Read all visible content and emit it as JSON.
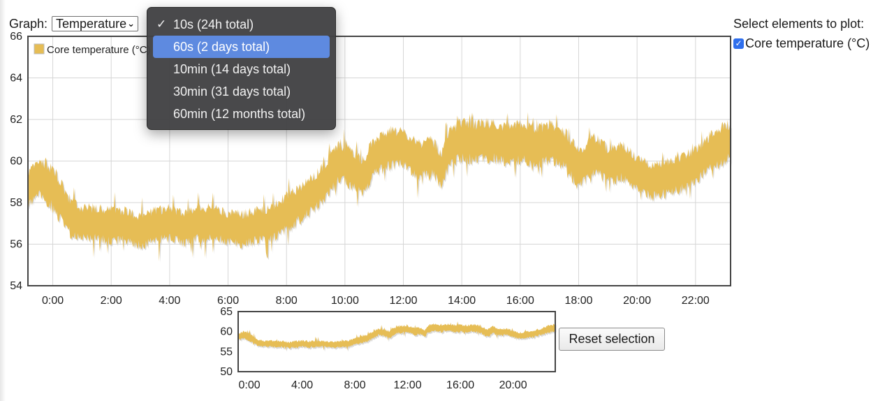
{
  "graph_selector": {
    "label": "Graph:",
    "value": "Temperature",
    "chevron_icon": "chevron-down-icon"
  },
  "dropdown": {
    "items": [
      {
        "label": "10s (24h total)",
        "checked": true,
        "highlighted": false
      },
      {
        "label": "60s (2 days total)",
        "checked": false,
        "highlighted": true
      },
      {
        "label": "10min (14 days total)",
        "checked": false,
        "highlighted": false
      },
      {
        "label": "30min (31 days total)",
        "checked": false,
        "highlighted": false
      },
      {
        "label": "60min (12 months total)",
        "checked": false,
        "highlighted": false
      }
    ],
    "check_icon": "checkmark-icon",
    "highlight_color": "#5e8ae0"
  },
  "plot_options": {
    "title": "Select elements to plot:",
    "items": [
      {
        "label": "Core temperature (°C)",
        "checked": true
      }
    ]
  },
  "reset_button": {
    "label": "Reset selection"
  },
  "colors": {
    "series": "#e6bd55",
    "series_shadow": "#b9b9b9",
    "grid": "#d6d6d6",
    "axis_border": "#444444"
  },
  "chart_data": [
    {
      "type": "line",
      "legend": "Core temperature (°C)",
      "ylim": [
        54,
        66
      ],
      "yticks": [
        "54",
        "56",
        "58",
        "60",
        "62",
        "64",
        "66"
      ],
      "xlim": [
        -0.85,
        23.2
      ],
      "xticks": [
        "0:00",
        "2:00",
        "4:00",
        "6:00",
        "8:00",
        "10:00",
        "12:00",
        "14:00",
        "16:00",
        "18:00",
        "20:00",
        "22:00"
      ],
      "grid": true,
      "series": [
        {
          "name": "Core temperature (°C)",
          "points": [
            [
              -0.85,
              58.7,
              1.4
            ],
            [
              -0.4,
              59.2,
              1.6
            ],
            [
              0.0,
              58.7,
              1.8
            ],
            [
              0.3,
              58.0,
              1.6
            ],
            [
              0.6,
              57.3,
              1.5
            ],
            [
              1.0,
              57.0,
              1.4
            ],
            [
              1.5,
              57.0,
              1.4
            ],
            [
              2.0,
              56.9,
              1.4
            ],
            [
              2.5,
              56.9,
              1.4
            ],
            [
              3.0,
              56.6,
              1.3
            ],
            [
              3.5,
              56.9,
              1.4
            ],
            [
              4.0,
              57.0,
              1.4
            ],
            [
              4.5,
              56.8,
              1.4
            ],
            [
              5.0,
              57.0,
              1.4
            ],
            [
              5.5,
              57.0,
              1.4
            ],
            [
              6.0,
              56.8,
              1.3
            ],
            [
              6.5,
              56.7,
              1.4
            ],
            [
              7.0,
              56.9,
              1.4
            ],
            [
              7.5,
              57.0,
              1.4
            ],
            [
              8.0,
              57.5,
              1.5
            ],
            [
              8.5,
              58.0,
              1.5
            ],
            [
              9.0,
              58.5,
              1.5
            ],
            [
              9.4,
              59.2,
              1.6
            ],
            [
              9.8,
              60.0,
              1.6
            ],
            [
              10.2,
              59.7,
              1.6
            ],
            [
              10.6,
              59.2,
              1.6
            ],
            [
              11.0,
              60.2,
              1.5
            ],
            [
              11.5,
              60.6,
              1.6
            ],
            [
              12.0,
              60.6,
              1.5
            ],
            [
              12.5,
              60.0,
              1.5
            ],
            [
              13.0,
              60.2,
              1.5
            ],
            [
              13.3,
              59.5,
              1.5
            ],
            [
              13.6,
              60.7,
              1.5
            ],
            [
              14.0,
              61.0,
              1.6
            ],
            [
              14.5,
              60.9,
              1.6
            ],
            [
              15.0,
              61.0,
              1.6
            ],
            [
              15.5,
              60.8,
              1.6
            ],
            [
              16.0,
              60.9,
              1.6
            ],
            [
              16.5,
              60.7,
              1.6
            ],
            [
              17.0,
              60.9,
              1.6
            ],
            [
              17.5,
              60.6,
              1.6
            ],
            [
              18.0,
              59.6,
              1.6
            ],
            [
              18.5,
              60.4,
              1.6
            ],
            [
              19.0,
              59.8,
              1.5
            ],
            [
              19.5,
              60.0,
              1.5
            ],
            [
              20.0,
              59.4,
              1.4
            ],
            [
              20.5,
              59.0,
              1.4
            ],
            [
              21.0,
              59.2,
              1.4
            ],
            [
              21.5,
              59.4,
              1.4
            ],
            [
              22.0,
              59.8,
              1.4
            ],
            [
              22.5,
              60.4,
              1.5
            ],
            [
              22.9,
              60.8,
              1.6
            ],
            [
              23.2,
              61.0,
              1.5
            ]
          ]
        }
      ]
    },
    {
      "type": "line",
      "ylim": [
        50,
        65
      ],
      "yticks": [
        "50",
        "55",
        "60",
        "65"
      ],
      "xlim": [
        -0.85,
        23.2
      ],
      "xticks": [
        "0:00",
        "4:00",
        "8:00",
        "12:00",
        "16:00",
        "20:00"
      ],
      "grid": false,
      "series": [
        {
          "name": "Core temperature (°C)",
          "points": [
            [
              -0.85,
              58.7,
              1.4
            ],
            [
              -0.4,
              59.2,
              1.6
            ],
            [
              0.0,
              58.7,
              1.8
            ],
            [
              0.3,
              58.0,
              1.6
            ],
            [
              0.6,
              57.3,
              1.5
            ],
            [
              1.0,
              57.0,
              1.4
            ],
            [
              1.5,
              57.0,
              1.4
            ],
            [
              2.0,
              56.9,
              1.4
            ],
            [
              2.5,
              56.9,
              1.4
            ],
            [
              3.0,
              56.6,
              1.3
            ],
            [
              3.5,
              56.9,
              1.4
            ],
            [
              4.0,
              57.0,
              1.4
            ],
            [
              4.5,
              56.8,
              1.4
            ],
            [
              5.0,
              57.0,
              1.4
            ],
            [
              5.5,
              57.0,
              1.4
            ],
            [
              6.0,
              56.8,
              1.3
            ],
            [
              6.5,
              56.7,
              1.4
            ],
            [
              7.0,
              56.9,
              1.4
            ],
            [
              7.5,
              57.0,
              1.4
            ],
            [
              8.0,
              57.5,
              1.5
            ],
            [
              8.5,
              58.0,
              1.5
            ],
            [
              9.0,
              58.5,
              1.5
            ],
            [
              9.4,
              59.2,
              1.6
            ],
            [
              9.8,
              60.0,
              1.6
            ],
            [
              10.2,
              59.7,
              1.6
            ],
            [
              10.6,
              59.2,
              1.6
            ],
            [
              11.0,
              60.2,
              1.5
            ],
            [
              11.5,
              60.6,
              1.6
            ],
            [
              12.0,
              60.6,
              1.5
            ],
            [
              12.5,
              60.0,
              1.5
            ],
            [
              13.0,
              60.2,
              1.5
            ],
            [
              13.3,
              59.5,
              1.5
            ],
            [
              13.6,
              60.7,
              1.5
            ],
            [
              14.0,
              61.0,
              1.6
            ],
            [
              14.5,
              60.9,
              1.6
            ],
            [
              15.0,
              61.0,
              1.6
            ],
            [
              15.5,
              60.8,
              1.6
            ],
            [
              16.0,
              60.9,
              1.6
            ],
            [
              16.5,
              60.7,
              1.6
            ],
            [
              17.0,
              60.9,
              1.6
            ],
            [
              17.5,
              60.6,
              1.6
            ],
            [
              18.0,
              59.6,
              1.6
            ],
            [
              18.5,
              60.4,
              1.6
            ],
            [
              19.0,
              59.8,
              1.5
            ],
            [
              19.5,
              60.0,
              1.5
            ],
            [
              20.0,
              59.4,
              1.4
            ],
            [
              20.5,
              59.0,
              1.4
            ],
            [
              21.0,
              59.2,
              1.4
            ],
            [
              21.5,
              59.4,
              1.4
            ],
            [
              22.0,
              59.8,
              1.4
            ],
            [
              22.5,
              60.4,
              1.5
            ],
            [
              22.9,
              60.8,
              1.6
            ],
            [
              23.2,
              61.0,
              1.5
            ]
          ]
        }
      ]
    }
  ]
}
